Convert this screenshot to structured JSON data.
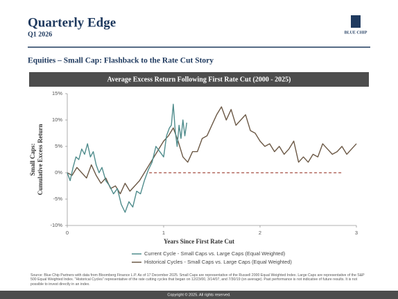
{
  "header": {
    "title": "Quarterly Edge",
    "subtitle": "Q1 2026",
    "logo": "BLUE CHIP"
  },
  "section_title": "Equities – Small Cap: Flashback to the Rate Cut Story",
  "chart_data": {
    "type": "line",
    "title": "Average Excess Return Following First Rate Cut (2000 - 2025)",
    "xlabel": "Years Since First Rate Cut",
    "ylabel": [
      "Small Caps:",
      "Cumulative Excess Return"
    ],
    "xlim": [
      0,
      3
    ],
    "xticks": [
      0,
      1,
      2,
      3
    ],
    "ylim": [
      -10,
      15
    ],
    "yticks": [
      {
        "value": -10,
        "label": "-10%"
      },
      {
        "value": -5,
        "label": "-5%"
      },
      {
        "value": 0,
        "label": "0%"
      },
      {
        "value": 5,
        "label": "5%"
      },
      {
        "value": 10,
        "label": "10%"
      },
      {
        "value": 15,
        "label": "15%"
      }
    ],
    "grid": false,
    "reference_line": {
      "y": 0,
      "x": [
        0.85,
        2.85
      ],
      "color": "#a24a3f"
    },
    "series": [
      {
        "name": "Current Cycle - Small Caps vs. Large Caps (Equal Weighted)",
        "color": "#4f8c8c",
        "x": [
          0,
          0.03,
          0.06,
          0.09,
          0.12,
          0.15,
          0.18,
          0.21,
          0.24,
          0.27,
          0.3,
          0.33,
          0.36,
          0.4,
          0.44,
          0.48,
          0.52,
          0.56,
          0.6,
          0.64,
          0.68,
          0.72,
          0.76,
          0.8,
          0.84,
          0.88,
          0.92,
          0.96,
          1.0,
          1.03,
          1.06,
          1.08,
          1.1,
          1.12,
          1.14,
          1.16,
          1.18,
          1.2,
          1.22,
          1.24
        ],
        "values": [
          0,
          -1.5,
          1,
          3,
          2.5,
          4.5,
          3.5,
          5.5,
          3,
          4,
          1.5,
          0,
          1,
          -1.5,
          -2.5,
          -4,
          -3,
          -6,
          -7.5,
          -5.5,
          -6.5,
          -3.5,
          -4,
          -1.5,
          0.5,
          2,
          5,
          4,
          3,
          7,
          8.5,
          9,
          13,
          8,
          5,
          9,
          6.5,
          10,
          7,
          9.5
        ]
      },
      {
        "name": "Historical Cycles - Small Caps vs. Large Caps (Equal Weighted)",
        "color": "#6b5845",
        "x": [
          0,
          0.05,
          0.1,
          0.15,
          0.2,
          0.25,
          0.3,
          0.35,
          0.4,
          0.45,
          0.5,
          0.55,
          0.6,
          0.65,
          0.7,
          0.75,
          0.8,
          0.85,
          0.9,
          0.95,
          1.0,
          1.05,
          1.1,
          1.15,
          1.2,
          1.25,
          1.3,
          1.35,
          1.4,
          1.45,
          1.5,
          1.55,
          1.6,
          1.65,
          1.7,
          1.75,
          1.8,
          1.85,
          1.9,
          1.95,
          2.0,
          2.05,
          2.1,
          2.15,
          2.2,
          2.25,
          2.3,
          2.35,
          2.4,
          2.45,
          2.5,
          2.55,
          2.6,
          2.65,
          2.7,
          2.75,
          2.8,
          2.85,
          2.9,
          2.95,
          3.0
        ],
        "values": [
          0,
          -0.5,
          1,
          0,
          -1,
          1.5,
          -0.5,
          -2,
          -1,
          -3,
          -2.5,
          -4,
          -2,
          -3.5,
          -2.5,
          -1.5,
          0,
          1.5,
          3,
          4.5,
          6,
          7,
          8.5,
          6,
          3,
          2,
          4,
          4,
          6.5,
          7,
          9,
          11,
          12.5,
          10,
          12,
          9,
          10,
          11,
          8,
          7.5,
          6,
          5,
          5.5,
          4,
          5,
          3.5,
          4.5,
          6,
          2,
          3,
          2,
          3.5,
          3,
          5.5,
          4.5,
          3.5,
          4,
          5,
          3.5,
          4.5,
          5.5
        ]
      }
    ]
  },
  "footnote": "Source: Blue Chip Partners with data from Bloomberg Finance L.P. As of 17 December 2025. Small Caps are representative of the Russell 2000 Equal Weighted Index. Large Caps are representative of the S&P 500 Equal Weighted Index. \"Historical Cycles\" representative of the rate cutting cycles that began on 12/23/00, 3/14/07, and 7/30/19 (on average). Past performance is not indicative of future results. It is not possible to invest directly in an index.",
  "footer": "Copyright © 2025. All rights reserved."
}
